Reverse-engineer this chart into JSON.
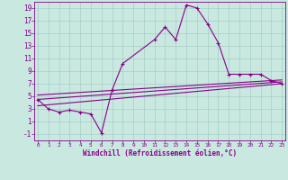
{
  "background_color": "#c8e8e0",
  "line_color": "#880088",
  "grid_color": "#a0c8c0",
  "axis_color": "#880088",
  "xlabel": "Windchill (Refroidissement éolien,°C)",
  "curve_x": [
    0,
    1,
    2,
    3,
    4,
    5,
    6,
    7,
    8,
    9,
    10,
    11,
    12,
    13,
    14,
    15,
    16,
    17,
    18,
    19,
    20,
    21,
    22,
    23
  ],
  "curve_y": [
    4.5,
    3.0,
    2.5,
    2.8,
    2.5,
    2.2,
    -0.8,
    6.0,
    10.2,
    null,
    null,
    14.0,
    16.0,
    14.0,
    19.5,
    19.0,
    16.5,
    13.5,
    8.5,
    8.5,
    8.5,
    8.5,
    7.5,
    7.0
  ],
  "ref_lines": [
    {
      "x0": 0,
      "y0": 3.5,
      "x1": 23,
      "y1": 7.0
    },
    {
      "x0": 0,
      "y0": 4.5,
      "x1": 23,
      "y1": 7.3
    },
    {
      "x0": 0,
      "y0": 5.2,
      "x1": 23,
      "y1": 7.6
    }
  ],
  "ylim": [
    -2,
    20
  ],
  "yticks": [
    -1,
    1,
    3,
    5,
    7,
    9,
    11,
    13,
    15,
    17,
    19
  ],
  "xlim": [
    -0.3,
    23.3
  ],
  "xticks": [
    0,
    1,
    2,
    3,
    4,
    5,
    6,
    7,
    8,
    9,
    10,
    11,
    12,
    13,
    14,
    15,
    16,
    17,
    18,
    19,
    20,
    21,
    22,
    23
  ],
  "xlabel_fontsize": 5.5,
  "tick_fontsize_x": 4.3,
  "tick_fontsize_y": 5.5,
  "linewidth": 0.8,
  "markersize": 3.5,
  "markeredgewidth": 0.8
}
